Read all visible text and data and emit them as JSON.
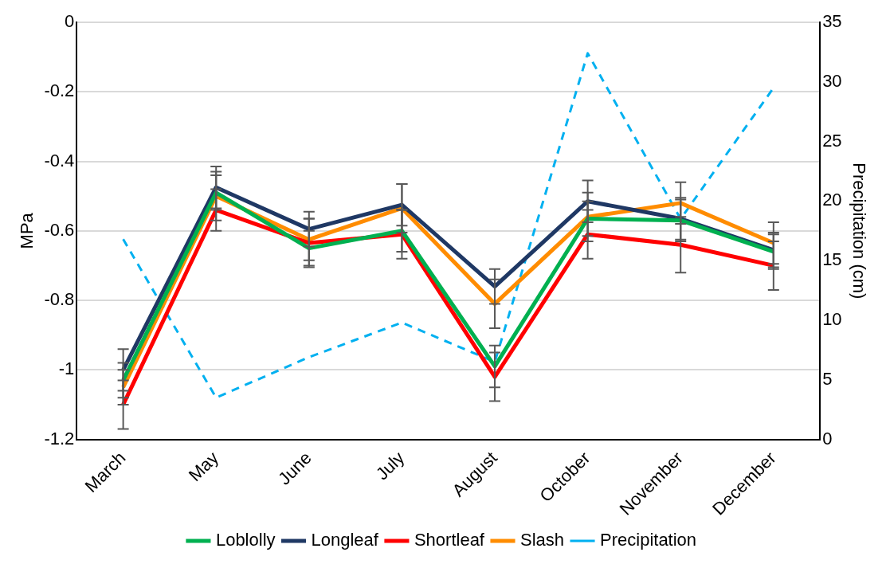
{
  "chart_data": {
    "type": "line",
    "ylabel": "MPa",
    "y2label": "Precipitation (cm)",
    "categories": [
      "March",
      "May",
      "June",
      "July",
      "August",
      "October",
      "November",
      "December"
    ],
    "series": [
      {
        "name": "Loblolly",
        "color": "#00b050",
        "values": [
          -1.03,
          -0.49,
          -0.65,
          -0.6,
          -0.99,
          -0.565,
          -0.57,
          -0.66
        ],
        "errors": [
          0.05,
          0.05,
          0.05,
          0.06,
          0.06,
          0.05,
          0.06,
          0.05
        ]
      },
      {
        "name": "Longleaf",
        "color": "#1f3864",
        "values": [
          -1.0,
          -0.475,
          -0.595,
          -0.525,
          -0.76,
          -0.515,
          -0.565,
          -0.655
        ],
        "errors": [
          0.06,
          0.06,
          0.05,
          0.06,
          0.05,
          0.06,
          0.06,
          0.05
        ]
      },
      {
        "name": "Shortleaf",
        "color": "#ff0000",
        "values": [
          -1.1,
          -0.54,
          -0.635,
          -0.61,
          -1.02,
          -0.61,
          -0.64,
          -0.7
        ],
        "errors": [
          0.07,
          0.06,
          0.07,
          0.07,
          0.07,
          0.07,
          0.08,
          0.07
        ]
      },
      {
        "name": "Slash",
        "color": "#ff8c00",
        "values": [
          -1.05,
          -0.5,
          -0.625,
          -0.535,
          -0.81,
          -0.56,
          -0.52,
          -0.635
        ],
        "errors": [
          0.05,
          0.07,
          0.06,
          0.07,
          0.07,
          0.07,
          0.06,
          0.06
        ]
      },
      {
        "name": "Precipitation",
        "color": "#00b0f0",
        "axis": "y2",
        "line_style": "dashed",
        "values": [
          16.8,
          3.5,
          6.9,
          9.8,
          6.5,
          32.4,
          18.5,
          29.5
        ]
      }
    ],
    "ylim": [
      -1.2,
      0
    ],
    "yticks": [
      -1.2,
      -1,
      -0.8,
      -0.6,
      -0.4,
      -0.2,
      0
    ],
    "y2lim": [
      0,
      35
    ],
    "y2ticks": [
      0,
      5,
      10,
      15,
      20,
      25,
      30,
      35
    ],
    "grid": "y",
    "legend": "bottom",
    "marker": "none",
    "line_style": "solid"
  }
}
